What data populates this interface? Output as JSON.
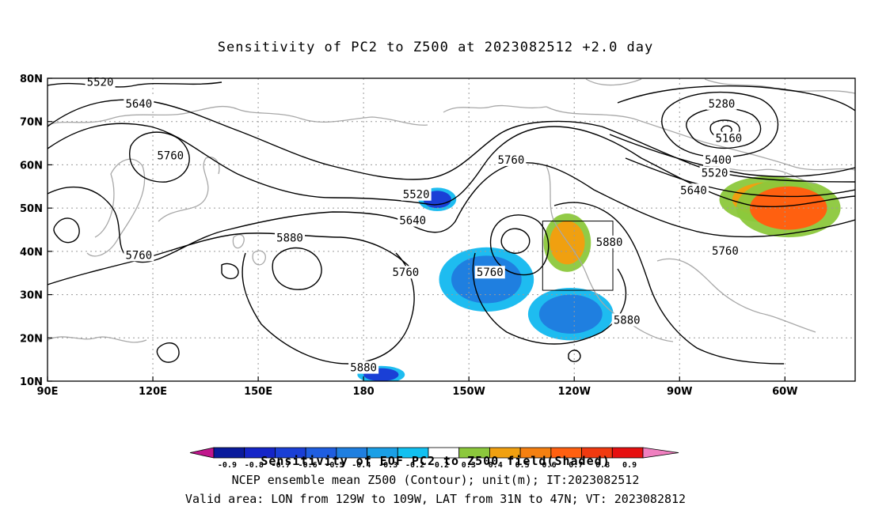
{
  "title": "Sensitivity of PC2 to Z500 at 2023082512 +2.0 day",
  "lat_axis": {
    "labels": [
      "10N",
      "20N",
      "30N",
      "40N",
      "50N",
      "60N",
      "70N",
      "80N"
    ],
    "values": [
      10,
      20,
      30,
      40,
      50,
      60,
      70,
      80
    ]
  },
  "lon_axis": {
    "labels": [
      "90E",
      "120E",
      "150E",
      "180",
      "150W",
      "120W",
      "90W",
      "60W"
    ],
    "values": [
      90,
      120,
      150,
      180,
      210,
      240,
      270,
      300
    ]
  },
  "contours": {
    "variable": "Z500",
    "unit": "m",
    "line_color": "#000000",
    "labels": [
      {
        "text": "5520",
        "lon": 105,
        "lat": 79
      },
      {
        "text": "5640",
        "lon": 116,
        "lat": 74
      },
      {
        "text": "5760",
        "lon": 125,
        "lat": 62
      },
      {
        "text": "5760",
        "lon": 116,
        "lat": 39
      },
      {
        "text": "5880",
        "lon": 159,
        "lat": 43
      },
      {
        "text": "5760",
        "lon": 192,
        "lat": 35
      },
      {
        "text": "5520",
        "lon": 195,
        "lat": 53
      },
      {
        "text": "5640",
        "lon": 194,
        "lat": 47
      },
      {
        "text": "5880",
        "lon": 180,
        "lat": 13
      },
      {
        "text": "5760",
        "lon": 222,
        "lat": 61
      },
      {
        "text": "5760",
        "lon": 216,
        "lat": 35
      },
      {
        "text": "5880",
        "lon": 250,
        "lat": 42
      },
      {
        "text": "5880",
        "lon": 255,
        "lat": 24
      },
      {
        "text": "5280",
        "lon": 282,
        "lat": 74
      },
      {
        "text": "5160",
        "lon": 284,
        "lat": 66
      },
      {
        "text": "5400",
        "lon": 281,
        "lat": 61
      },
      {
        "text": "5520",
        "lon": 280,
        "lat": 58
      },
      {
        "text": "5640",
        "lon": 274,
        "lat": 54
      },
      {
        "text": "5760",
        "lon": 283,
        "lat": 40
      }
    ]
  },
  "shading": {
    "variable": "Sensitivity of EOF PC2 to Z500",
    "colors": {
      "strong_negative": "#1a3fd6",
      "negative": "#1f7fe0",
      "weak_negative": "#12b8ef",
      "weak_positive": "#8cc83c",
      "positive": "#f0a010",
      "strong_positive": "#ff6010"
    },
    "patches": [
      {
        "sign": "negative",
        "lon": [
          197,
          205
        ],
        "lat": [
          54,
          50
        ],
        "level": "strong_negative"
      },
      {
        "sign": "negative",
        "lon": [
          205,
          225
        ],
        "lat": [
          39,
          28
        ],
        "level": "negative"
      },
      {
        "sign": "negative",
        "lon": [
          230,
          248
        ],
        "lat": [
          30,
          21
        ],
        "level": "negative"
      },
      {
        "sign": "negative",
        "lon": [
          180,
          190
        ],
        "lat": [
          13,
          10
        ],
        "level": "strong_negative"
      },
      {
        "sign": "positive",
        "lon": [
          233,
          243
        ],
        "lat": [
          47,
          37
        ],
        "level": "positive"
      },
      {
        "sign": "positive",
        "lon": [
          285,
          306
        ],
        "lat": [
          56,
          48
        ],
        "level": "positive"
      },
      {
        "sign": "positive",
        "lon": [
          290,
          312
        ],
        "lat": [
          55,
          45
        ],
        "level": "strong_positive"
      }
    ]
  },
  "valid_box": {
    "lon": [
      231,
      251
    ],
    "lat": [
      31,
      47
    ]
  },
  "colorbar": {
    "labels": [
      "-0.9",
      "-0.8",
      "-0.7",
      "-0.6",
      "-0.5",
      "-0.4",
      "-0.3",
      "-0.2",
      "0.2",
      "0.3",
      "0.4",
      "0.5",
      "0.6",
      "0.7",
      "0.8",
      "0.9"
    ],
    "colors": [
      "#c0168c",
      "#0a1a9c",
      "#1525c8",
      "#1a3fd6",
      "#1f5ee0",
      "#1f7fe0",
      "#1a9fe6",
      "#12c0f0",
      "#ffffff",
      "#8cc83c",
      "#f0a010",
      "#f58010",
      "#ff6010",
      "#f03a10",
      "#e61010",
      "#f080c0"
    ]
  },
  "footer": {
    "line1": "Sensitivity of EOF PC2 to Z500 field(Shaded)",
    "line2": "NCEP ensemble mean Z500 (Contour); unit(m); IT:2023082512",
    "line3": "Valid area: LON from 129W to 109W, LAT from 31N to 47N; VT: 2023082812"
  }
}
